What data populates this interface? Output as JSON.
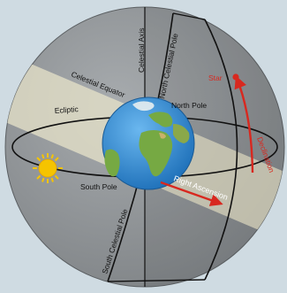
{
  "labels": {
    "celestial_axis": "Celestial Axis",
    "north_celestial_pole": "North Celestial Pole",
    "celestial_equator": "Celestial Equator",
    "ecliptic": "Ecliptic",
    "north_pole": "North Pole",
    "south_pole": "South Pole",
    "south_celestial_pole": "South Celestial Pole",
    "star": "Star",
    "declination": "Declination",
    "right_ascension": "Right Ascension"
  },
  "colors": {
    "sphere": "#8f9396",
    "frame": "#cfdbe2",
    "equator_band": "#e7e3c9",
    "highlight": "#d8281f",
    "sun": "#f5c400",
    "ocean": "#3b8fd3",
    "land": "#76a943"
  },
  "icons": {
    "sun": "sun-icon",
    "earth": "earth-globe-icon",
    "star": "star-marker-icon"
  }
}
